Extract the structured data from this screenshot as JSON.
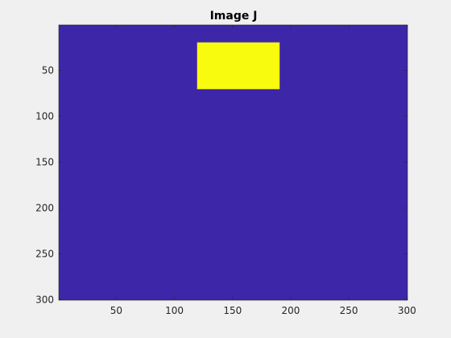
{
  "chart_data": {
    "type": "heatmap",
    "title": "Image J",
    "xlabel": "",
    "ylabel": "",
    "xlim": [
      0.5,
      300.5
    ],
    "ylim": [
      0.5,
      300.5
    ],
    "y_direction": "reverse",
    "x_ticks": [
      50,
      100,
      150,
      200,
      250,
      300
    ],
    "y_ticks": [
      50,
      100,
      150,
      200,
      250,
      300
    ],
    "grid": false,
    "background_value": 0,
    "background_color": "#3e26a8",
    "regions": [
      {
        "value": 1,
        "color": "#f9fb0e",
        "x_range": [
          120,
          190
        ],
        "y_range": [
          20,
          70
        ]
      }
    ]
  }
}
